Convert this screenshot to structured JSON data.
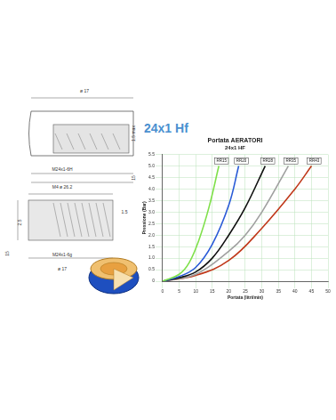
{
  "heading": "24x1 Hf",
  "drawing_labels": [
    "ø 17",
    "1.5 max",
    "15",
    "M24x1-6H",
    "M4 ø 26.2",
    "2.5",
    "1.5",
    "15",
    "M24x1-6g",
    "ø 17"
  ],
  "chart_data": {
    "type": "line",
    "title": "Portata AERATORI",
    "subtitle": "24x1 HF",
    "x_label": "Portata (litri/min)",
    "y_label": "Pressione (Bar)",
    "xlim": [
      0,
      50
    ],
    "xticks": [
      0,
      5,
      10,
      15,
      20,
      25,
      30,
      35,
      40,
      45,
      50
    ],
    "ylim": [
      0,
      5.5
    ],
    "yticks": [
      0,
      0.5,
      1,
      1.5,
      2,
      2.5,
      3,
      3.5,
      4,
      4.5,
      5,
      5.5
    ],
    "grid": true,
    "series": [
      {
        "name": "RR15",
        "color": "#7fe04a",
        "x": [
          0,
          5,
          8,
          11,
          14,
          17
        ],
        "values": [
          0,
          0.3,
          0.8,
          1.8,
          3.2,
          5
        ]
      },
      {
        "name": "RR20",
        "color": "#2a5bd7",
        "x": [
          0,
          5,
          10,
          15,
          20,
          23
        ],
        "values": [
          0,
          0.2,
          0.6,
          1.6,
          3.3,
          5
        ]
      },
      {
        "name": "RR28",
        "color": "#111111",
        "x": [
          0,
          5,
          10,
          15,
          20,
          25,
          31
        ],
        "values": [
          0,
          0.15,
          0.4,
          1,
          2,
          3.2,
          5
        ]
      },
      {
        "name": "RR35",
        "color": "#a0a0a0",
        "x": [
          0,
          10,
          20,
          25,
          30,
          38
        ],
        "values": [
          0,
          0.3,
          1.3,
          2,
          3,
          5
        ]
      },
      {
        "name": "RR43",
        "color": "#c0391b",
        "x": [
          0,
          10,
          20,
          30,
          40,
          45
        ],
        "values": [
          0,
          0.25,
          0.9,
          2.3,
          4,
          5
        ]
      }
    ]
  }
}
